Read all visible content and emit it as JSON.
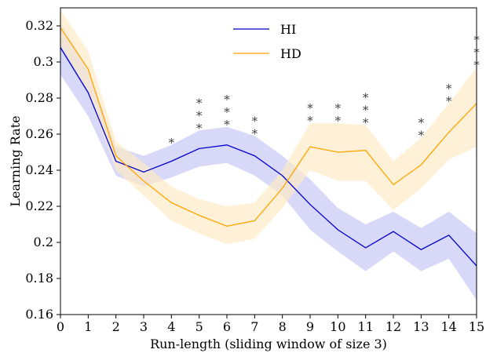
{
  "chart_data": {
    "type": "line",
    "title": "",
    "xlabel": "Run-length (sliding window of size 3)",
    "ylabel": "Learning Rate",
    "xlim": [
      0,
      15
    ],
    "ylim": [
      0.16,
      0.33
    ],
    "x_ticks": [
      0,
      1,
      2,
      3,
      4,
      5,
      6,
      7,
      8,
      9,
      10,
      11,
      12,
      13,
      14,
      15
    ],
    "y_ticks": [
      0.16,
      0.18,
      0.2,
      0.22,
      0.24,
      0.26,
      0.28,
      0.3,
      0.32
    ],
    "y_tick_labels": [
      "0.16",
      "0.18",
      "0.2",
      "0.22",
      "0.24",
      "0.26",
      "0.28",
      "0.3",
      "0.32"
    ],
    "grid": false,
    "legend_position": "top-center",
    "x": [
      0,
      1,
      2,
      3,
      4,
      5,
      6,
      7,
      8,
      9,
      10,
      11,
      12,
      13,
      14,
      15
    ],
    "series": [
      {
        "name": "HI",
        "color": "#0000cc",
        "band_color": "#c8c8f5",
        "values": [
          0.308,
          0.283,
          0.245,
          0.239,
          0.245,
          0.252,
          0.254,
          0.248,
          0.237,
          0.221,
          0.207,
          0.197,
          0.206,
          0.196,
          0.204,
          0.187
        ],
        "lower": [
          0.293,
          0.27,
          0.237,
          0.231,
          0.236,
          0.242,
          0.244,
          0.237,
          0.226,
          0.207,
          0.195,
          0.184,
          0.195,
          0.184,
          0.191,
          0.168
        ],
        "upper": [
          0.322,
          0.296,
          0.253,
          0.248,
          0.254,
          0.262,
          0.264,
          0.259,
          0.248,
          0.235,
          0.219,
          0.21,
          0.217,
          0.208,
          0.217,
          0.205
        ]
      },
      {
        "name": "HD",
        "color": "#ffa500",
        "band_color": "#fdebc8",
        "values": [
          0.319,
          0.296,
          0.248,
          0.234,
          0.222,
          0.215,
          0.209,
          0.212,
          0.23,
          0.253,
          0.25,
          0.251,
          0.232,
          0.243,
          0.261,
          0.277
        ],
        "lower": [
          0.31,
          0.283,
          0.24,
          0.226,
          0.212,
          0.205,
          0.199,
          0.202,
          0.219,
          0.24,
          0.234,
          0.234,
          0.218,
          0.23,
          0.246,
          0.253
        ],
        "upper": [
          0.329,
          0.306,
          0.256,
          0.244,
          0.231,
          0.224,
          0.22,
          0.222,
          0.24,
          0.266,
          0.266,
          0.265,
          0.245,
          0.258,
          0.277,
          0.297
        ]
      }
    ],
    "significance": [
      {
        "x": 4,
        "marks": "*"
      },
      {
        "x": 5,
        "marks": "***"
      },
      {
        "x": 6,
        "marks": "***"
      },
      {
        "x": 7,
        "marks": "**"
      },
      {
        "x": 9,
        "marks": "**"
      },
      {
        "x": 10,
        "marks": "**"
      },
      {
        "x": 11,
        "marks": "***"
      },
      {
        "x": 13,
        "marks": "**"
      },
      {
        "x": 14,
        "marks": "**"
      },
      {
        "x": 15,
        "marks": "***"
      }
    ]
  }
}
